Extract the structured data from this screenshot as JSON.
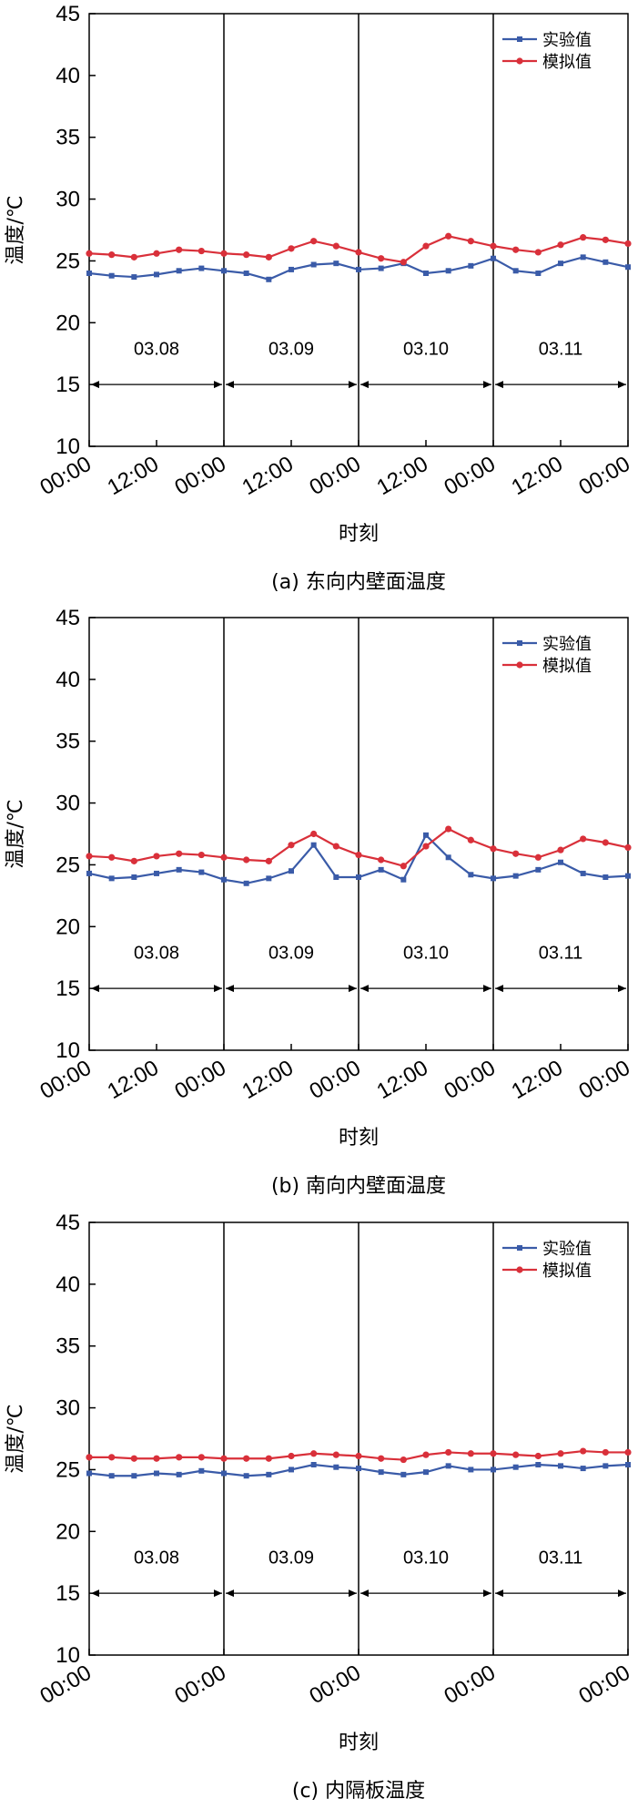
{
  "colors": {
    "experiment": "#3a5ba8",
    "simulation": "#d9303a",
    "axis": "#000000"
  },
  "legend": {
    "experiment": "实验值",
    "simulation": "模拟值"
  },
  "chart_data": [
    {
      "type": "line",
      "caption": "(a) 东向内壁面温度",
      "xlabel": "时刻",
      "ylabel": "温度/℃",
      "ylim": [
        10,
        45
      ],
      "yticks": [
        "10",
        "15",
        "20",
        "25",
        "30",
        "35",
        "40",
        "45"
      ],
      "xticks": [
        "00:00",
        "12:00",
        "00:00",
        "12:00",
        "00:00",
        "12:00",
        "00:00",
        "12:00",
        "00:00"
      ],
      "days": [
        "03.08",
        "03.09",
        "03.10",
        "03.11"
      ],
      "x_hours": [
        0,
        4,
        8,
        12,
        16,
        20,
        24,
        28,
        32,
        36,
        40,
        44,
        48,
        52,
        56,
        60,
        64,
        68,
        72,
        76,
        80,
        84,
        88,
        92,
        96
      ],
      "series": [
        {
          "name": "实验值",
          "values": [
            24.0,
            23.8,
            23.7,
            23.9,
            24.2,
            24.4,
            24.2,
            24.0,
            23.5,
            24.3,
            24.7,
            24.8,
            24.3,
            24.4,
            24.8,
            24.0,
            24.2,
            24.6,
            25.2,
            24.2,
            24.0,
            24.8,
            25.3,
            24.9,
            24.5
          ]
        },
        {
          "name": "模拟值",
          "values": [
            25.6,
            25.5,
            25.3,
            25.6,
            25.9,
            25.8,
            25.6,
            25.5,
            25.3,
            26.0,
            26.6,
            26.2,
            25.7,
            25.2,
            24.9,
            26.2,
            27.0,
            26.6,
            26.2,
            25.9,
            25.7,
            26.3,
            26.9,
            26.7,
            26.4
          ]
        }
      ]
    },
    {
      "type": "line",
      "caption": "(b) 南向内壁面温度",
      "xlabel": "时刻",
      "ylabel": "温度/℃",
      "ylim": [
        10,
        45
      ],
      "yticks": [
        "10",
        "15",
        "20",
        "25",
        "30",
        "35",
        "40",
        "45"
      ],
      "xticks": [
        "00:00",
        "12:00",
        "00:00",
        "12:00",
        "00:00",
        "12:00",
        "00:00",
        "12:00",
        "00:00"
      ],
      "days": [
        "03.08",
        "03.09",
        "03.10",
        "03.11"
      ],
      "x_hours": [
        0,
        4,
        8,
        12,
        16,
        20,
        24,
        28,
        32,
        36,
        40,
        44,
        48,
        52,
        56,
        60,
        64,
        68,
        72,
        76,
        80,
        84,
        88,
        92,
        96
      ],
      "series": [
        {
          "name": "实验值",
          "values": [
            24.3,
            23.9,
            24.0,
            24.3,
            24.6,
            24.4,
            23.8,
            23.5,
            23.9,
            24.5,
            26.6,
            24.0,
            24.0,
            24.6,
            23.8,
            27.4,
            25.6,
            24.2,
            23.9,
            24.1,
            24.6,
            25.2,
            24.3,
            24.0,
            24.1
          ]
        },
        {
          "name": "模拟值",
          "values": [
            25.7,
            25.6,
            25.3,
            25.7,
            25.9,
            25.8,
            25.6,
            25.4,
            25.3,
            26.6,
            27.5,
            26.5,
            25.8,
            25.4,
            24.9,
            26.5,
            27.9,
            27.0,
            26.3,
            25.9,
            25.6,
            26.2,
            27.1,
            26.8,
            26.4
          ]
        }
      ]
    },
    {
      "type": "line",
      "caption": "(c) 内隔板温度",
      "xlabel": "时刻",
      "ylabel": "温度/℃",
      "ylim": [
        10,
        45
      ],
      "yticks": [
        "10",
        "15",
        "20",
        "25",
        "30",
        "35",
        "40",
        "45"
      ],
      "xticks": [
        "00:00",
        "00:00",
        "00:00",
        "00:00",
        "00:00"
      ],
      "days": [
        "03.08",
        "03.09",
        "03.10",
        "03.11"
      ],
      "x_hours": [
        0,
        4,
        8,
        12,
        16,
        20,
        24,
        28,
        32,
        36,
        40,
        44,
        48,
        52,
        56,
        60,
        64,
        68,
        72,
        76,
        80,
        84,
        88,
        92,
        96
      ],
      "series": [
        {
          "name": "实验值",
          "values": [
            24.7,
            24.5,
            24.5,
            24.7,
            24.6,
            24.9,
            24.7,
            24.5,
            24.6,
            25.0,
            25.4,
            25.2,
            25.1,
            24.8,
            24.6,
            24.8,
            25.3,
            25.0,
            25.0,
            25.2,
            25.4,
            25.3,
            25.1,
            25.3,
            25.4
          ]
        },
        {
          "name": "模拟值",
          "values": [
            26.0,
            26.0,
            25.9,
            25.9,
            26.0,
            26.0,
            25.9,
            25.9,
            25.9,
            26.1,
            26.3,
            26.2,
            26.1,
            25.9,
            25.8,
            26.2,
            26.4,
            26.3,
            26.3,
            26.2,
            26.1,
            26.3,
            26.5,
            26.4,
            26.4
          ]
        }
      ]
    }
  ]
}
